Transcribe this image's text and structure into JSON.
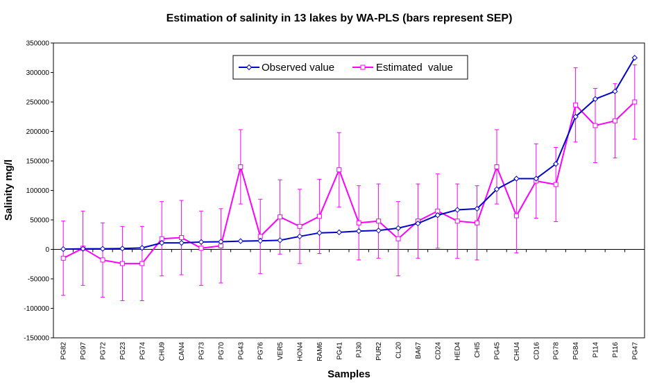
{
  "chart_data": {
    "type": "line",
    "title": "Estimation of salinity in 13 lakes by WA-PLS (bars represent SEP)",
    "xlabel": "Samples",
    "ylabel": "Salinity mg/l",
    "ylim": [
      -150000,
      350000
    ],
    "ytick_step": 50000,
    "ytick_labels": [
      "-150000",
      "-100000",
      "-50000",
      "0",
      "50000",
      "100000",
      "150000",
      "200000",
      "250000",
      "300000",
      "350000"
    ],
    "grid": false,
    "legend_position": "top-center",
    "sep": 63000,
    "categories": [
      "PG82",
      "PG97",
      "PG72",
      "PG23",
      "PG74",
      "CHU9",
      "CAN4",
      "PG73",
      "PG70",
      "PG43",
      "PG76",
      "VER5",
      "HON4",
      "RAM6",
      "PG41",
      "PJ30",
      "PUR2",
      "CL20",
      "BA67",
      "CD24",
      "HED4",
      "CHI5",
      "PG45",
      "CHU4",
      "CD16",
      "PG78",
      "PG84",
      "P114",
      "P116",
      "PG47"
    ],
    "series": [
      {
        "name": "Observed value",
        "color": "#0000CC",
        "marker": "diamond",
        "values": [
          500,
          1000,
          1000,
          1500,
          2500,
          11000,
          11000,
          12500,
          13000,
          14000,
          14500,
          15500,
          22000,
          28000,
          29000,
          31000,
          32000,
          36000,
          44000,
          58000,
          67000,
          69000,
          102000,
          120000,
          120000,
          145000,
          225000,
          255000,
          268000,
          325000
        ]
      },
      {
        "name": "Estimated  value",
        "color": "#FF00FF",
        "marker": "square",
        "values": [
          -15000,
          2000,
          -18000,
          -24000,
          -24000,
          18000,
          20000,
          2000,
          6000,
          140000,
          22000,
          55000,
          39000,
          56000,
          135000,
          45000,
          48000,
          18000,
          48000,
          65000,
          48000,
          45000,
          140000,
          57000,
          116000,
          110000,
          245000,
          210000,
          218000,
          250000
        ]
      }
    ]
  }
}
